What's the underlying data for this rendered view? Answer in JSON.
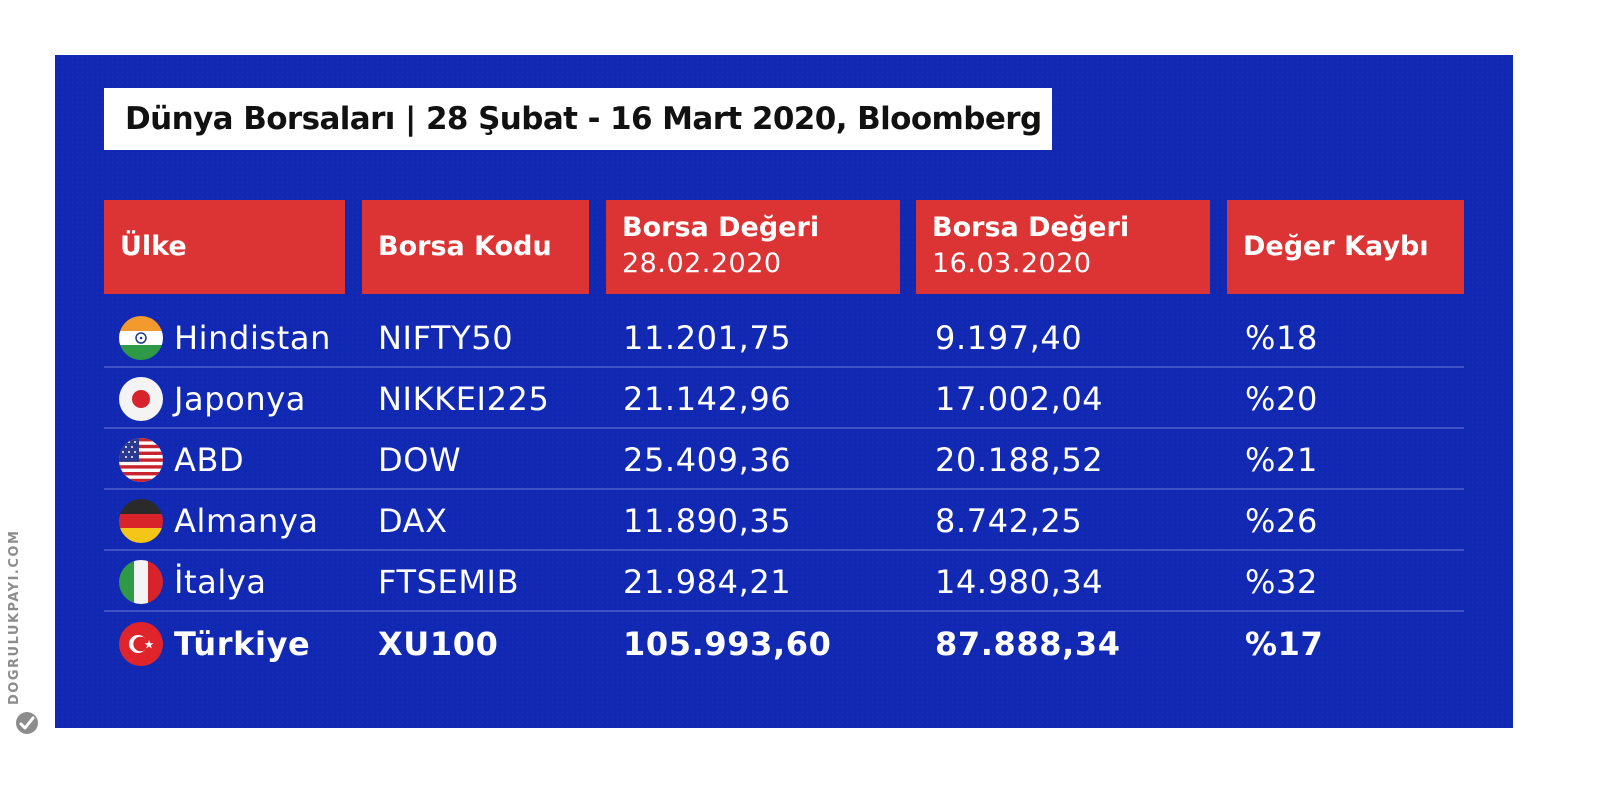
{
  "title": "Dünya Borsaları | 28 Şubat - 16 Mart 2020, Bloomberg",
  "columns": [
    {
      "label": "Ülke",
      "sub": ""
    },
    {
      "label": "Borsa Kodu",
      "sub": ""
    },
    {
      "label": "Borsa Değeri",
      "sub": "28.02.2020"
    },
    {
      "label": "Borsa Değeri",
      "sub": "16.03.2020"
    },
    {
      "label": "Değer Kaybı",
      "sub": ""
    }
  ],
  "rows": [
    {
      "country": "Hindistan",
      "flag": "india-flag-icon",
      "code": "NIFTY50",
      "value_0228": "11.201,75",
      "value_0316": "9.197,40",
      "loss": "%18"
    },
    {
      "country": "Japonya",
      "flag": "japan-flag-icon",
      "code": "NIKKEI225",
      "value_0228": "21.142,96",
      "value_0316": "17.002,04",
      "loss": "%20"
    },
    {
      "country": "ABD",
      "flag": "usa-flag-icon",
      "code": "DOW",
      "value_0228": "25.409,36",
      "value_0316": "20.188,52",
      "loss": "%21"
    },
    {
      "country": "Almanya",
      "flag": "germany-flag-icon",
      "code": "DAX",
      "value_0228": "11.890,35",
      "value_0316": "8.742,25",
      "loss": "%26"
    },
    {
      "country": "İtalya",
      "flag": "italy-flag-icon",
      "code": "FTSEMIB",
      "value_0228": "21.984,21",
      "value_0316": "14.980,34",
      "loss": "%32"
    },
    {
      "country": "Türkiye",
      "flag": "turkey-flag-icon",
      "code": "XU100",
      "value_0228": "105.993,60",
      "value_0316": "87.888,34",
      "loss": "%17"
    }
  ],
  "watermark": "DOGRULUKPAYI.COM",
  "colors": {
    "panel_bg": "#1128b3",
    "header_bg": "#dc3434",
    "separator": "#3f52c6",
    "text": "#ffffff"
  }
}
